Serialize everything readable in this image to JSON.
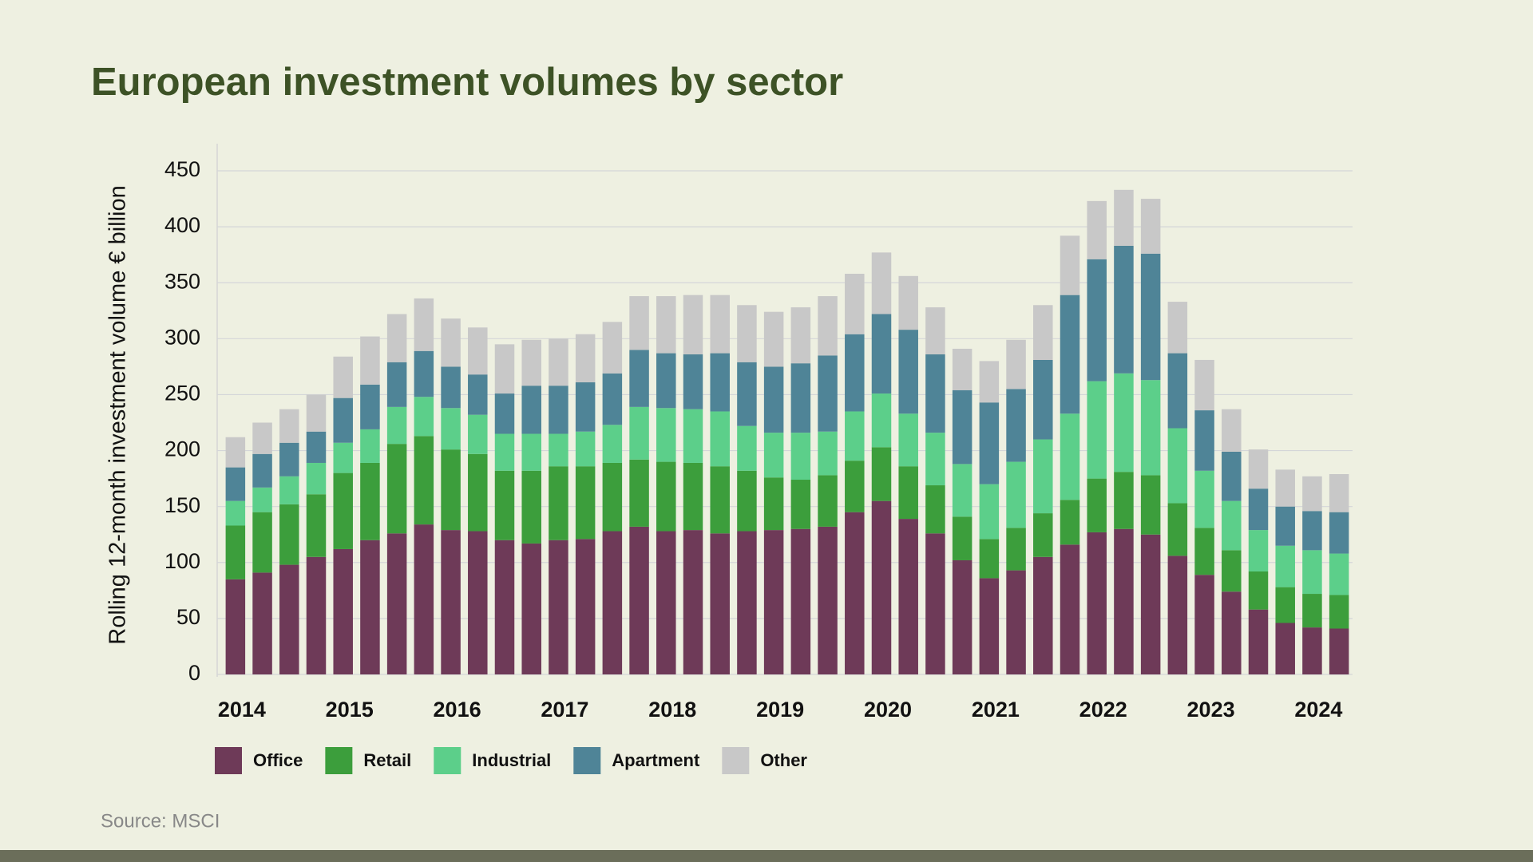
{
  "chart_data": {
    "type": "stacked_bar",
    "title": "European investment volumes by sector",
    "y_label": "Rolling 12-month investment volume € billion",
    "source": "Source: MSCI",
    "categories": [
      "2014",
      null,
      null,
      null,
      "2015",
      null,
      null,
      null,
      "2016",
      null,
      null,
      null,
      "2017",
      null,
      null,
      null,
      "2018",
      null,
      null,
      null,
      "2019",
      null,
      null,
      null,
      "2020",
      null,
      null,
      null,
      "2021",
      null,
      null,
      null,
      "2022",
      null,
      null,
      null,
      "2023",
      null,
      null,
      null,
      "2024",
      null
    ],
    "series": [
      {
        "name": "Office",
        "color": "#6e3a58",
        "values": [
          85,
          91,
          98,
          105,
          112,
          120,
          126,
          134,
          129,
          128,
          120,
          117,
          120,
          121,
          128,
          132,
          128,
          129,
          126,
          128,
          129,
          130,
          132,
          145,
          155,
          139,
          126,
          102,
          86,
          93,
          105,
          116,
          127,
          130,
          125,
          106,
          89,
          74,
          58,
          46,
          42,
          41
        ]
      },
      {
        "name": "Retail",
        "color": "#3c9e3c",
        "values": [
          48,
          54,
          54,
          56,
          68,
          69,
          80,
          79,
          72,
          69,
          62,
          65,
          66,
          65,
          61,
          60,
          62,
          60,
          60,
          54,
          47,
          44,
          46,
          46,
          48,
          47,
          43,
          39,
          35,
          38,
          39,
          40,
          48,
          51,
          53,
          47,
          42,
          37,
          34,
          32,
          30,
          30
        ]
      },
      {
        "name": "Industrial",
        "color": "#5ccf8a",
        "values": [
          22,
          22,
          25,
          28,
          27,
          30,
          33,
          35,
          37,
          35,
          33,
          33,
          29,
          31,
          34,
          47,
          48,
          48,
          49,
          40,
          40,
          42,
          39,
          44,
          48,
          47,
          47,
          47,
          49,
          59,
          66,
          77,
          87,
          88,
          85,
          67,
          51,
          44,
          37,
          37,
          39,
          37
        ]
      },
      {
        "name": "Apartment",
        "color": "#4f8497",
        "values": [
          30,
          30,
          30,
          28,
          40,
          40,
          40,
          41,
          37,
          36,
          36,
          43,
          43,
          44,
          46,
          51,
          49,
          49,
          52,
          57,
          59,
          62,
          68,
          69,
          71,
          75,
          70,
          66,
          73,
          65,
          71,
          106,
          109,
          114,
          113,
          67,
          54,
          44,
          37,
          35,
          35,
          37
        ]
      },
      {
        "name": "Other",
        "color": "#c8c8c8",
        "values": [
          27,
          28,
          30,
          33,
          37,
          43,
          43,
          47,
          43,
          42,
          44,
          41,
          42,
          43,
          46,
          48,
          51,
          53,
          52,
          51,
          49,
          50,
          53,
          54,
          55,
          48,
          42,
          37,
          37,
          44,
          49,
          53,
          52,
          50,
          49,
          46,
          45,
          38,
          35,
          33,
          31,
          34
        ]
      }
    ],
    "ylim": [
      0,
      450
    ],
    "yticks": [
      0,
      50,
      100,
      150,
      200,
      250,
      300,
      350,
      400,
      450
    ],
    "grid": true
  }
}
